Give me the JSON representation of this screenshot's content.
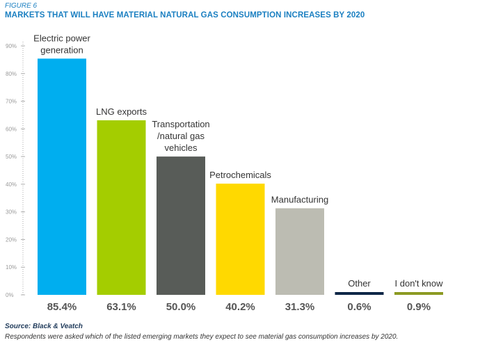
{
  "figure_label": "FIGURE 6",
  "title": "MARKETS THAT WILL HAVE MATERIAL NATURAL GAS CONSUMPTION INCREASES BY 2020",
  "source": "Source: Black & Veatch",
  "note": "Respondents were asked which of the listed emerging markets they expect to see material gas consumption increases by 2020.",
  "chart_data": {
    "type": "bar",
    "categories": [
      [
        "Electric power",
        "generation"
      ],
      [
        "LNG exports"
      ],
      [
        "Transportation",
        "/natural gas",
        "vehicles"
      ],
      [
        "Petrochemicals"
      ],
      [
        "Manufacturing"
      ],
      [
        "Other"
      ],
      [
        "I don't know"
      ]
    ],
    "values": [
      85.4,
      63.1,
      50.0,
      40.2,
      31.3,
      0.6,
      0.9
    ],
    "value_labels": [
      "85.4%",
      "63.1%",
      "50.0%",
      "40.2%",
      "31.3%",
      "0.6%",
      "0.9%"
    ],
    "colors": [
      "#00aeef",
      "#a4cd00",
      "#585c58",
      "#ffd900",
      "#bcbcb2",
      "#0f2747",
      "#8c9a22"
    ],
    "yticks": [
      "0%",
      "10%",
      "20%",
      "30%",
      "40%",
      "50%",
      "60%",
      "70%",
      "80%",
      "90%"
    ],
    "ylim": [
      0,
      90
    ],
    "grid": false
  }
}
